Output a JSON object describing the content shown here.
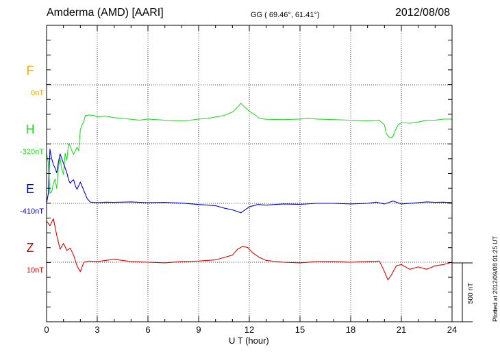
{
  "header": {
    "station": "Amderma (AMD)  [AARI]",
    "coords": "GG ( 69.46°,  61.41°)",
    "date": "2012/08/08"
  },
  "footer": {
    "plotted": "Plotted at 2012/09/08 01:25 UT"
  },
  "chart_data": {
    "type": "line",
    "xlabel": "U T (hour)",
    "xlim": [
      0,
      24
    ],
    "xticks": [
      "0",
      "3",
      "6",
      "9",
      "12",
      "15",
      "18",
      "21",
      "24"
    ],
    "scale_bar": {
      "label": "500 nT",
      "value_nT": 500
    },
    "grid": true,
    "colors": {
      "F": "#f5a400",
      "H": "#22dd22",
      "E": "#0000cc",
      "Z": "#dd0000"
    },
    "components": [
      {
        "name": "F",
        "baseline_label": "0nT",
        "color": "#f5a400",
        "x": [],
        "y": []
      },
      {
        "name": "H",
        "baseline_label": "-320nT",
        "color": "#22dd22",
        "x": [
          0,
          0.1,
          0.2,
          0.3,
          0.4,
          0.5,
          0.6,
          0.7,
          0.8,
          0.9,
          1.0,
          1.1,
          1.2,
          1.3,
          1.4,
          1.5,
          1.6,
          1.7,
          1.8,
          1.9,
          2.0,
          2.1,
          2.2,
          2.3,
          2.5,
          2.8,
          3.0,
          3.5,
          4.0,
          4.5,
          5.0,
          5.5,
          6.0,
          7.0,
          8.0,
          8.5,
          9.0,
          9.5,
          10.0,
          10.5,
          11.0,
          11.3,
          11.5,
          11.7,
          12.0,
          12.3,
          12.6,
          13.0,
          14.0,
          15.0,
          15.5,
          16.0,
          17.0,
          18.0,
          19.0,
          19.7,
          20.0,
          20.1,
          20.3,
          20.5,
          20.6,
          20.8,
          21.0,
          21.5,
          22.0,
          22.5,
          23.0,
          23.5,
          24.0
        ],
        "y": [
          -80,
          -160,
          -420,
          -410,
          -340,
          -300,
          -380,
          -200,
          -120,
          -220,
          -260,
          -80,
          -140,
          0,
          -20,
          -60,
          -90,
          -60,
          -30,
          -60,
          120,
          160,
          190,
          240,
          245,
          240,
          230,
          235,
          222,
          215,
          208,
          200,
          210,
          200,
          195,
          200,
          210,
          215,
          228,
          240,
          270,
          310,
          345,
          315,
          275,
          250,
          215,
          208,
          205,
          210,
          215,
          210,
          205,
          200,
          196,
          200,
          160,
          90,
          50,
          60,
          100,
          160,
          180,
          175,
          185,
          200,
          200,
          210,
          210
        ]
      },
      {
        "name": "E",
        "baseline_label": "-410nT",
        "color": "#0000cc",
        "x": [
          0,
          0.1,
          0.2,
          0.3,
          0.4,
          0.5,
          0.6,
          0.7,
          0.8,
          0.9,
          1.0,
          1.1,
          1.2,
          1.3,
          1.4,
          1.5,
          1.6,
          1.7,
          1.8,
          1.9,
          2.0,
          2.2,
          2.4,
          2.6,
          3.0,
          3.5,
          4.0,
          5.0,
          6.0,
          7.0,
          8.0,
          9.0,
          10.0,
          10.5,
          11.0,
          11.3,
          11.5,
          11.8,
          12.0,
          12.5,
          13.0,
          14.0,
          15.0,
          16.0,
          17.0,
          18.0,
          19.0,
          19.5,
          20.0,
          20.5,
          21.0,
          22.0,
          22.5,
          23.0,
          23.5,
          24.0
        ],
        "y": [
          0,
          80,
          460,
          380,
          330,
          300,
          260,
          350,
          420,
          380,
          340,
          300,
          260,
          200,
          170,
          190,
          200,
          150,
          120,
          150,
          180,
          110,
          40,
          10,
          5,
          10,
          8,
          12,
          5,
          8,
          2,
          -10,
          -20,
          -40,
          -55,
          -70,
          -80,
          -50,
          -30,
          -10,
          -15,
          -5,
          -8,
          0,
          0,
          -5,
          0,
          10,
          -5,
          20,
          -5,
          5,
          12,
          8,
          10,
          5
        ]
      },
      {
        "name": "Z",
        "baseline_label": "10nT",
        "color": "#dd0000",
        "x": [
          0,
          0.2,
          0.4,
          0.6,
          0.8,
          1.0,
          1.2,
          1.4,
          1.6,
          1.8,
          2.0,
          2.2,
          2.5,
          3.0,
          3.5,
          4.0,
          5.0,
          6.0,
          7.0,
          8.0,
          9.0,
          10.0,
          10.5,
          11.0,
          11.3,
          11.6,
          11.9,
          12.2,
          12.6,
          13.0,
          14.0,
          15.0,
          16.0,
          17.0,
          18.0,
          19.0,
          19.7,
          20.0,
          20.2,
          20.4,
          20.7,
          21.0,
          21.5,
          22.0,
          22.5,
          23.0,
          23.5,
          24.0
        ],
        "y": [
          350,
          310,
          370,
          230,
          110,
          160,
          100,
          120,
          60,
          -30,
          -80,
          0,
          10,
          5,
          15,
          25,
          5,
          0,
          -5,
          5,
          10,
          20,
          40,
          60,
          110,
          135,
          125,
          80,
          40,
          15,
          0,
          -5,
          5,
          5,
          0,
          5,
          10,
          -80,
          -150,
          -110,
          -30,
          -20,
          -60,
          -40,
          -60,
          -30,
          -20,
          0
        ]
      }
    ]
  }
}
